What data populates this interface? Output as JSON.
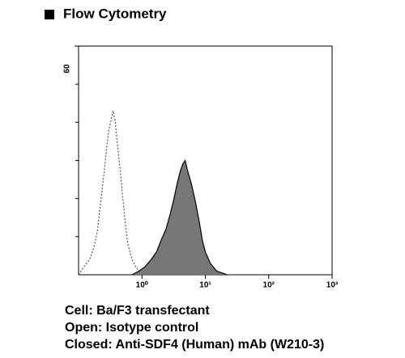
{
  "chart_data": {
    "type": "flow-histogram",
    "title": "Flow Cytometry",
    "xscale": "log",
    "xlim": [
      0.1,
      1000
    ],
    "xticks": [
      {
        "value": 1,
        "label": "10⁰"
      },
      {
        "value": 10,
        "label": "10¹"
      },
      {
        "value": 100,
        "label": "10²"
      },
      {
        "value": 1000,
        "label": "10³"
      }
    ],
    "ylim": [
      0,
      60
    ],
    "yticks": [
      60
    ],
    "y_minor_ticks": [
      10,
      20,
      30,
      40,
      50
    ],
    "series": [
      {
        "color": "#555555",
        "style": "dotted",
        "filled": false,
        "x": [
          0.1,
          0.12,
          0.15,
          0.18,
          0.2,
          0.22,
          0.25,
          0.28,
          0.3,
          0.32,
          0.35,
          0.38,
          0.4,
          0.45,
          0.5,
          0.55,
          0.6,
          0.7,
          0.8,
          1.0
        ],
        "values": [
          0,
          2,
          4,
          8,
          12,
          18,
          26,
          34,
          38,
          40,
          43,
          40,
          36,
          28,
          20,
          13,
          8,
          4,
          2,
          0
        ]
      },
      {
        "color": "#777777",
        "style": "solid",
        "filled": true,
        "x": [
          0.7,
          0.9,
          1.1,
          1.4,
          1.7,
          2.0,
          2.4,
          2.8,
          3.2,
          3.6,
          4.0,
          4.4,
          4.8,
          5.3,
          6,
          7,
          8,
          9,
          10,
          12,
          15,
          18,
          22
        ],
        "values": [
          0,
          1,
          2,
          4,
          6,
          9,
          12,
          16,
          20,
          24,
          27,
          29,
          30,
          27,
          24,
          19,
          14,
          9,
          6,
          3,
          1,
          0.5,
          0
        ]
      }
    ],
    "captions": [
      "Cell: Ba/F3 transfectant",
      "Open: Isotype control",
      "Closed: Anti-SDF4  (Human) mAb (W210-3)"
    ]
  }
}
